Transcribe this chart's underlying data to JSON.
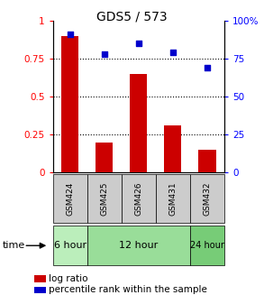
{
  "title": "GDS5 / 573",
  "samples": [
    "GSM424",
    "GSM425",
    "GSM426",
    "GSM431",
    "GSM432"
  ],
  "log_ratio": [
    0.9,
    0.2,
    0.65,
    0.31,
    0.15
  ],
  "percentile_rank": [
    0.91,
    0.78,
    0.85,
    0.79,
    0.69
  ],
  "bar_color": "#cc0000",
  "dot_color": "#0000cc",
  "ylim_left": [
    0,
    1
  ],
  "ylim_right": [
    0,
    100
  ],
  "yticks_left": [
    0,
    0.25,
    0.5,
    0.75,
    1.0
  ],
  "ytick_labels_left": [
    "0",
    "0.25",
    "0.5",
    "0.75",
    "1"
  ],
  "yticks_right": [
    0,
    25,
    50,
    75,
    100
  ],
  "ytick_labels_right": [
    "0",
    "25",
    "50",
    "75",
    "100%"
  ],
  "groups": [
    {
      "label": "6 hour",
      "indices": [
        0
      ],
      "color": "#bbeebb"
    },
    {
      "label": "12 hour",
      "indices": [
        1,
        2,
        3
      ],
      "color": "#99dd99"
    },
    {
      "label": "24 hour",
      "indices": [
        4
      ],
      "color": "#77cc77"
    }
  ],
  "time_label": "time",
  "legend_log_ratio": "log ratio",
  "legend_percentile": "percentile rank within the sample",
  "plot_bg": "#ffffff",
  "sample_box_color": "#cccccc",
  "bar_width": 0.5
}
